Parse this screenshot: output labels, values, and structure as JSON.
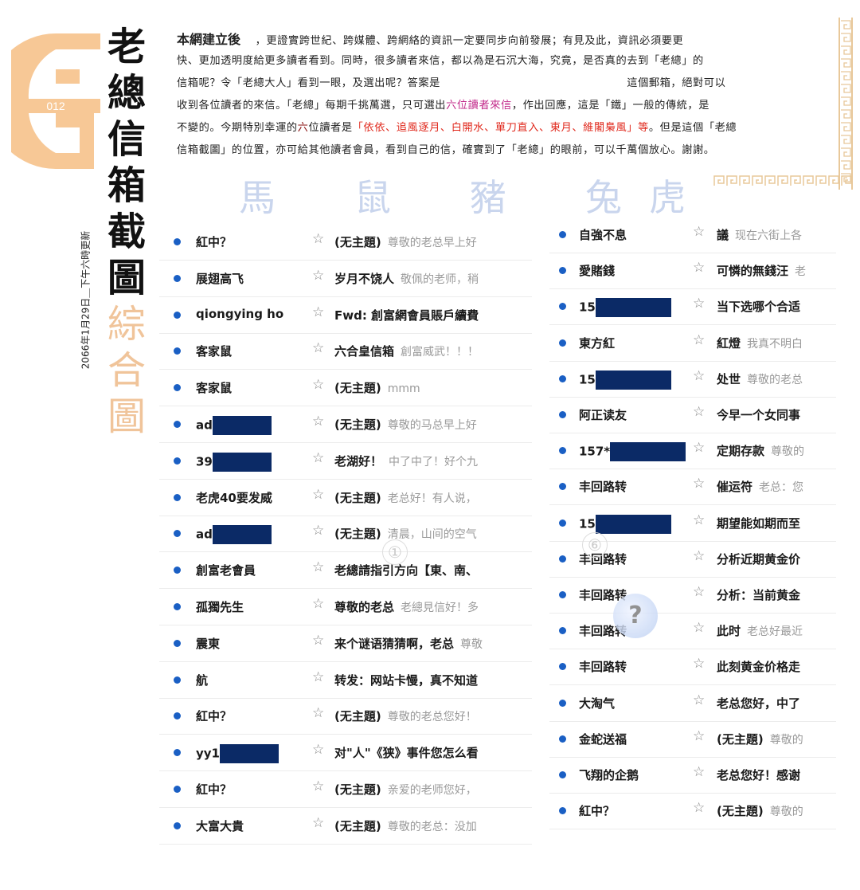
{
  "logo": {
    "text": "012",
    "color": "#f5c08e"
  },
  "title": {
    "main_chars": [
      "老",
      "總",
      "信",
      "箱",
      "截",
      "圖"
    ],
    "sub_chars": [
      "綜",
      "合",
      "圖"
    ]
  },
  "date": "2066年1月29日＿下午六時更新",
  "paragraph": {
    "lines": [
      [
        {
          "text": "本網建立後",
          "style": "lead"
        },
        {
          "text": "　 ，更證實跨世紀、跨媒體、跨網絡的資訊一定要同步向前發展；有見及此，資訊必須要更"
        }
      ],
      [
        {
          "text": "快、更加透明度給更多讀者看到。同時，很多讀者來信，都以為是石沉大海，究竟，是否真的去到「老總」的"
        }
      ],
      [
        {
          "text": "信箱呢？令「老總大人」看到一眼，及選出呢？答案是　　　　　　　　　　　　　　　　　這個郵箱，絕對可以"
        }
      ],
      [
        {
          "text": "收到各位讀者的來信。「老總」每期千挑萬選，只可選出"
        },
        {
          "text": "六位讀者來信",
          "color": "#c2298a"
        },
        {
          "text": "，作出回應，這是「鐵」一般的傳統，是"
        }
      ],
      [
        {
          "text": "不變的。今期特別幸運的"
        },
        {
          "text": "六",
          "color": "#8a1010"
        },
        {
          "text": "位讀者是"
        },
        {
          "text": "「依依、追風逐月、白開水、單刀直入、東月、維闍梟風」等",
          "color": "#e02a1e"
        },
        {
          "text": "。但是這個「老總"
        }
      ],
      [
        {
          "text": "信箱截圖」的位置，亦可給其他讀者會員，看到自己的信，確實到了「老總」的眼前，可以千萬個放心。謝謝。"
        }
      ]
    ]
  },
  "zodiac": [
    "馬",
    "鼠",
    "豬",
    "兔",
    "虎"
  ],
  "markers": {
    "left_circle": "①",
    "right_circle": "⑥",
    "help": "?"
  },
  "left_list": [
    {
      "sender": "紅中？",
      "subject": "(无主題)",
      "preview": "尊敬的老总早上好"
    },
    {
      "sender": "展翅高飞",
      "subject": "岁月不饶人",
      "preview": "敬佩的老师，稍"
    },
    {
      "sender": "qiongying ho",
      "subject": "Fwd: 創富網會員賬戶續費",
      "preview": ""
    },
    {
      "sender": "客家鼠",
      "subject": "六合皇信箱",
      "preview": "創富威武！！！"
    },
    {
      "sender": "客家鼠",
      "subject": "(无主題)",
      "preview": "mmm"
    },
    {
      "sender": "ad",
      "redacted": true,
      "subject": "(无主題)",
      "preview": "尊敬的马总早上好"
    },
    {
      "sender": "39",
      "redacted": true,
      "subject": "老湖好！",
      "preview": "中了中了！好个九"
    },
    {
      "sender": "老虎40要发威",
      "subject": "(无主題)",
      "preview": "老总好！有人说，"
    },
    {
      "sender": "ad",
      "redacted": true,
      "subject": "(无主題)",
      "preview": "清晨，山间的空气"
    },
    {
      "sender": "創富老會員",
      "subject": "老總請指引方向【東、南、",
      "preview": ""
    },
    {
      "sender": "孤獨先生",
      "subject": "尊敬的老总",
      "preview": "老總見信好！多"
    },
    {
      "sender": "震東",
      "subject": "来个谜语猜猜啊，老总",
      "preview": "尊敬"
    },
    {
      "sender": "航",
      "subject": "转发：网站卡慢，真不知道",
      "preview": ""
    },
    {
      "sender": "紅中？",
      "subject": "(无主題)",
      "preview": "尊敬的老总您好！"
    },
    {
      "sender": "yy1",
      "redacted": true,
      "subject": "对\"人\"《狭》事件您怎么看",
      "preview": ""
    },
    {
      "sender": "紅中？",
      "subject": "(无主題)",
      "preview": "亲爱的老师您好，"
    },
    {
      "sender": "大富大貴",
      "subject": "(无主題)",
      "preview": "尊敬的老总：没加"
    }
  ],
  "right_list": [
    {
      "sender": "自強不息",
      "subject": "議",
      "preview": "现在六街上各"
    },
    {
      "sender": "愛賭錢",
      "subject": "可憐的無錢汪",
      "preview": "老"
    },
    {
      "sender": "15",
      "redacted": true,
      "subject": "当下选哪个合适",
      "preview": ""
    },
    {
      "sender": "東方紅",
      "subject": "紅燈",
      "preview": "我真不明白"
    },
    {
      "sender": "15",
      "redacted": true,
      "subject": "处世",
      "preview": "尊敬的老总"
    },
    {
      "sender": "阿正读友",
      "subject": "今早一个女同事",
      "preview": ""
    },
    {
      "sender": "157*",
      "redacted": true,
      "subject": "定期存款",
      "preview": "尊敬的"
    },
    {
      "sender": "丰回路转",
      "subject": "催运符",
      "preview": "老总：您"
    },
    {
      "sender": "15",
      "redacted": true,
      "subject": "期望能如期而至",
      "preview": ""
    },
    {
      "sender": "丰回路转",
      "subject": "分析近期黄金价",
      "preview": ""
    },
    {
      "sender": "丰回路转",
      "subject": "分析：当前黄金",
      "preview": ""
    },
    {
      "sender": "丰回路转",
      "subject": "此时",
      "preview": "老总好最近"
    },
    {
      "sender": "丰回路转",
      "subject": "此刻黄金价格走",
      "preview": ""
    },
    {
      "sender": "大淘气",
      "subject": "老总您好，中了",
      "preview": ""
    },
    {
      "sender": "金蛇送福",
      "subject": "(无主題)",
      "preview": "尊敬的"
    },
    {
      "sender": "飞翔的企鹅",
      "subject": "老总您好！感谢",
      "preview": ""
    },
    {
      "sender": "紅中？",
      "subject": "(无主題)",
      "preview": "尊敬的"
    }
  ],
  "colors": {
    "unread_dot": "#1a5fc4",
    "redaction": "#0b2a66",
    "accent_red": "#e02a1e",
    "accent_pink": "#c2298a"
  }
}
